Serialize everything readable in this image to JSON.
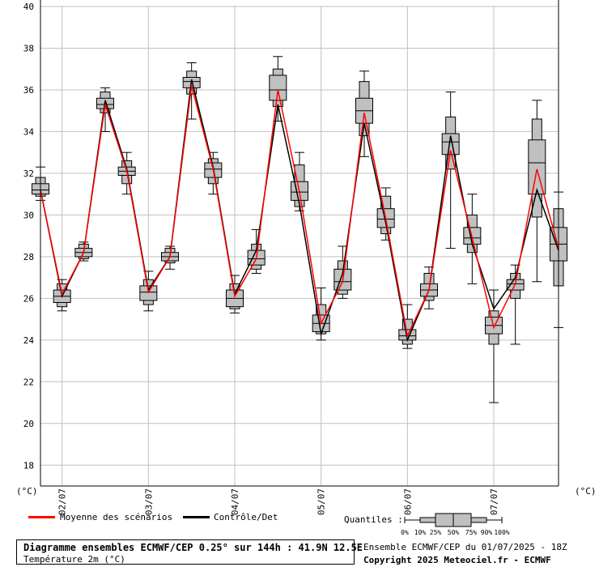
{
  "chart_data": {
    "type": "boxplot",
    "title": "Diagramme ensembles ECMWF/CEP 0.25° sur 144h : 41.9N 12.5E",
    "subtitle": "Température 2m (°C)",
    "ylabel_left": "(°C)",
    "ylabel_right": "(°C)",
    "ylim": [
      17,
      40
    ],
    "yticks": [
      18,
      20,
      22,
      24,
      26,
      28,
      30,
      32,
      34,
      36,
      38,
      40
    ],
    "xticks": [
      {
        "label": "02/07",
        "t": 6
      },
      {
        "label": "03/07",
        "t": 30
      },
      {
        "label": "04/07",
        "t": 54
      },
      {
        "label": "05/07",
        "t": 78
      },
      {
        "label": "06/07",
        "t": 102
      },
      {
        "label": "07/07",
        "t": 126
      }
    ],
    "xlim": [
      0,
      144
    ],
    "grid": true,
    "x_step_hours": 6,
    "boxes": [
      {
        "t": 0,
        "p0": 30.7,
        "p10": 30.9,
        "p25": 31.0,
        "p50": 31.2,
        "p75": 31.5,
        "p90": 31.8,
        "p100": 32.3
      },
      {
        "t": 6,
        "p0": 25.4,
        "p10": 25.6,
        "p25": 25.8,
        "p50": 26.1,
        "p75": 26.4,
        "p90": 26.7,
        "p100": 26.9
      },
      {
        "t": 12,
        "p0": 27.8,
        "p10": 27.9,
        "p25": 28.0,
        "p50": 28.2,
        "p75": 28.4,
        "p90": 28.6,
        "p100": 28.7
      },
      {
        "t": 18,
        "p0": 34.0,
        "p10": 34.9,
        "p25": 35.1,
        "p50": 35.3,
        "p75": 35.6,
        "p90": 35.9,
        "p100": 36.1
      },
      {
        "t": 24,
        "p0": 31.0,
        "p10": 31.5,
        "p25": 31.9,
        "p50": 32.1,
        "p75": 32.3,
        "p90": 32.6,
        "p100": 33.0
      },
      {
        "t": 30,
        "p0": 25.4,
        "p10": 25.7,
        "p25": 25.9,
        "p50": 26.3,
        "p75": 26.6,
        "p90": 26.9,
        "p100": 27.3
      },
      {
        "t": 36,
        "p0": 27.4,
        "p10": 27.7,
        "p25": 27.8,
        "p50": 28.0,
        "p75": 28.2,
        "p90": 28.4,
        "p100": 28.5
      },
      {
        "t": 42,
        "p0": 34.6,
        "p10": 35.8,
        "p25": 36.1,
        "p50": 36.4,
        "p75": 36.6,
        "p90": 36.9,
        "p100": 37.3
      },
      {
        "t": 48,
        "p0": 31.0,
        "p10": 31.5,
        "p25": 31.8,
        "p50": 32.2,
        "p75": 32.5,
        "p90": 32.7,
        "p100": 33.0
      },
      {
        "t": 54,
        "p0": 25.3,
        "p10": 25.5,
        "p25": 25.6,
        "p50": 26.0,
        "p75": 26.4,
        "p90": 26.7,
        "p100": 27.1
      },
      {
        "t": 60,
        "p0": 27.2,
        "p10": 27.4,
        "p25": 27.6,
        "p50": 27.9,
        "p75": 28.3,
        "p90": 28.6,
        "p100": 29.3
      },
      {
        "t": 66,
        "p0": 34.5,
        "p10": 35.2,
        "p25": 35.5,
        "p50": 36.0,
        "p75": 36.7,
        "p90": 37.0,
        "p100": 37.6
      },
      {
        "t": 72,
        "p0": 30.2,
        "p10": 30.4,
        "p25": 30.7,
        "p50": 31.1,
        "p75": 31.6,
        "p90": 32.4,
        "p100": 33.0
      },
      {
        "t": 78,
        "p0": 24.0,
        "p10": 24.3,
        "p25": 24.4,
        "p50": 24.8,
        "p75": 25.2,
        "p90": 25.7,
        "p100": 26.5
      },
      {
        "t": 84,
        "p0": 26.0,
        "p10": 26.2,
        "p25": 26.4,
        "p50": 26.8,
        "p75": 27.4,
        "p90": 27.8,
        "p100": 28.5
      },
      {
        "t": 90,
        "p0": 32.8,
        "p10": 33.8,
        "p25": 34.4,
        "p50": 35.0,
        "p75": 35.6,
        "p90": 36.4,
        "p100": 36.9
      },
      {
        "t": 96,
        "p0": 28.8,
        "p10": 29.1,
        "p25": 29.4,
        "p50": 29.8,
        "p75": 30.3,
        "p90": 30.9,
        "p100": 31.3
      },
      {
        "t": 102,
        "p0": 23.6,
        "p10": 23.8,
        "p25": 24.0,
        "p50": 24.2,
        "p75": 24.5,
        "p90": 25.0,
        "p100": 25.7
      },
      {
        "t": 108,
        "p0": 25.5,
        "p10": 25.9,
        "p25": 26.1,
        "p50": 26.4,
        "p75": 26.7,
        "p90": 27.2,
        "p100": 27.5
      },
      {
        "t": 114,
        "p0": 28.4,
        "p10": 32.2,
        "p25": 32.9,
        "p50": 33.5,
        "p75": 33.9,
        "p90": 34.7,
        "p100": 35.9
      },
      {
        "t": 120,
        "p0": 26.7,
        "p10": 28.2,
        "p25": 28.6,
        "p50": 28.9,
        "p75": 29.4,
        "p90": 30.0,
        "p100": 31.0
      },
      {
        "t": 126,
        "p0": 21.0,
        "p10": 23.8,
        "p25": 24.3,
        "p50": 24.7,
        "p75": 25.1,
        "p90": 25.4,
        "p100": 26.4
      },
      {
        "t": 132,
        "p0": 23.8,
        "p10": 26.0,
        "p25": 26.4,
        "p50": 26.7,
        "p75": 26.9,
        "p90": 27.2,
        "p100": 27.6
      },
      {
        "t": 138,
        "p0": 26.8,
        "p10": 29.9,
        "p25": 31.0,
        "p50": 32.5,
        "p75": 33.6,
        "p90": 34.6,
        "p100": 35.5
      },
      {
        "t": 144,
        "p0": 24.6,
        "p10": 26.6,
        "p25": 27.8,
        "p50": 28.6,
        "p75": 29.4,
        "p90": 30.3,
        "p100": 31.1
      }
    ],
    "series": [
      {
        "name": "Moyenne des scénarios",
        "color": "#ff0000",
        "values": [
          31.2,
          26.2,
          28.2,
          35.3,
          32.1,
          26.3,
          28.0,
          36.2,
          32.2,
          26.1,
          27.9,
          36.0,
          31.1,
          24.8,
          26.8,
          34.9,
          29.8,
          24.2,
          26.4,
          33.1,
          28.9,
          24.6,
          26.7,
          32.2,
          28.4
        ]
      },
      {
        "name": "Contrôle/Det",
        "color": "#000000",
        "values": [
          31.2,
          26.1,
          28.2,
          35.5,
          32.2,
          26.4,
          28.0,
          36.5,
          32.3,
          26.2,
          28.3,
          35.3,
          30.5,
          24.3,
          27.2,
          34.4,
          29.6,
          24.0,
          26.4,
          33.8,
          28.6,
          25.5,
          27.0,
          31.2,
          28.3
        ]
      }
    ]
  },
  "legend": {
    "mean_label": "Moyenne des scénarios",
    "control_label": "Contrôle/Det",
    "quantiles_label": "Quantiles :",
    "quantile_ticks": [
      "0%",
      "10%",
      "25%",
      "50%",
      "75%",
      "90%",
      "100%"
    ]
  },
  "footer": {
    "title": "Diagramme ensembles ECMWF/CEP 0.25° sur 144h : 41.9N 12.5E",
    "subtitle": "Température 2m (°C)",
    "run_info": "Ensemble ECMWF/CEP du 01/07/2025 - 18Z",
    "copyright": "Copyright 2025 Meteociel.fr - ECMWF"
  },
  "colors": {
    "box_fill": "#c0c0c0",
    "grid": "#c0c0c0",
    "mean": "#ff0000",
    "control": "#000000"
  }
}
